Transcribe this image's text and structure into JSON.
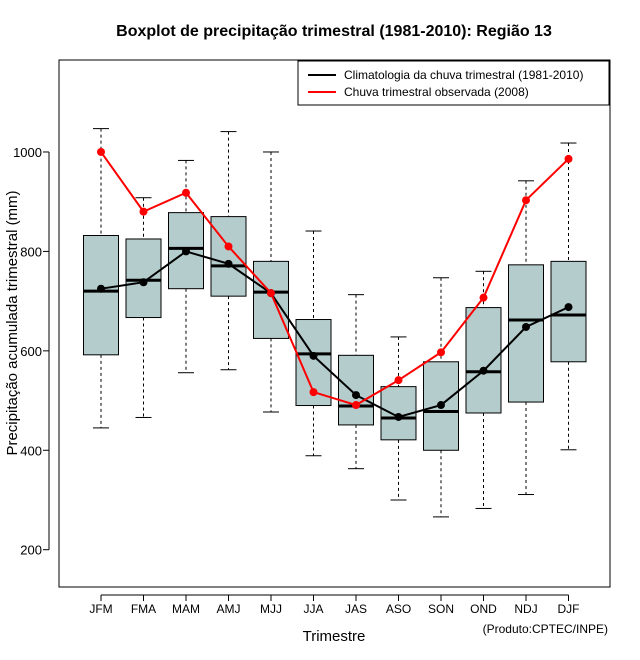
{
  "chart_data": {
    "type": "boxplot-with-lines",
    "title": "Boxplot de precipitação trimestral (1981-2010): Região 13",
    "xlabel": "Trimestre",
    "ylabel": "Precipitação acumulada trimestral (mm)",
    "credit": "(Produto:CPTEC/INPE)",
    "ylim": [
      125,
      1185
    ],
    "yticks": [
      200,
      400,
      600,
      800,
      1000
    ],
    "categories": [
      "JFM",
      "FMA",
      "MAM",
      "AMJ",
      "MJJ",
      "JJA",
      "JAS",
      "ASO",
      "SON",
      "OND",
      "NDJ",
      "DJF"
    ],
    "boxes": [
      {
        "min": 445,
        "q1": 592,
        "median": 720,
        "q3": 832,
        "max": 1047
      },
      {
        "min": 466,
        "q1": 667,
        "median": 742,
        "q3": 825,
        "max": 908
      },
      {
        "min": 556,
        "q1": 725,
        "median": 806,
        "q3": 878,
        "max": 983
      },
      {
        "min": 562,
        "q1": 710,
        "median": 771,
        "q3": 870,
        "max": 1041
      },
      {
        "min": 477,
        "q1": 625,
        "median": 718,
        "q3": 780,
        "max": 1000
      },
      {
        "min": 389,
        "q1": 490,
        "median": 594,
        "q3": 663,
        "max": 841
      },
      {
        "min": 363,
        "q1": 451,
        "median": 489,
        "q3": 591,
        "max": 713
      },
      {
        "min": 300,
        "q1": 421,
        "median": 465,
        "q3": 528,
        "max": 628
      },
      {
        "min": 266,
        "q1": 400,
        "median": 478,
        "q3": 578,
        "max": 747
      },
      {
        "min": 283,
        "q1": 475,
        "median": 558,
        "q3": 687,
        "max": 760
      },
      {
        "min": 311,
        "q1": 497,
        "median": 662,
        "q3": 773,
        "max": 942
      },
      {
        "min": 401,
        "q1": 578,
        "median": 672,
        "q3": 780,
        "max": 1018
      }
    ],
    "series": [
      {
        "name": "Climatologia da chuva trimestral (1981-2010)",
        "color": "#000000",
        "values": [
          725,
          738,
          800,
          775,
          716,
          590,
          511,
          467,
          491,
          560,
          648,
          688
        ]
      },
      {
        "name": "Chuva trimestral observada (2008)",
        "color": "#ff0000",
        "values": [
          1000,
          880,
          918,
          810,
          716,
          517,
          491,
          541,
          597,
          707,
          903,
          986
        ]
      }
    ],
    "box_fill": "#b5cccc",
    "legend_position": "top-right"
  }
}
